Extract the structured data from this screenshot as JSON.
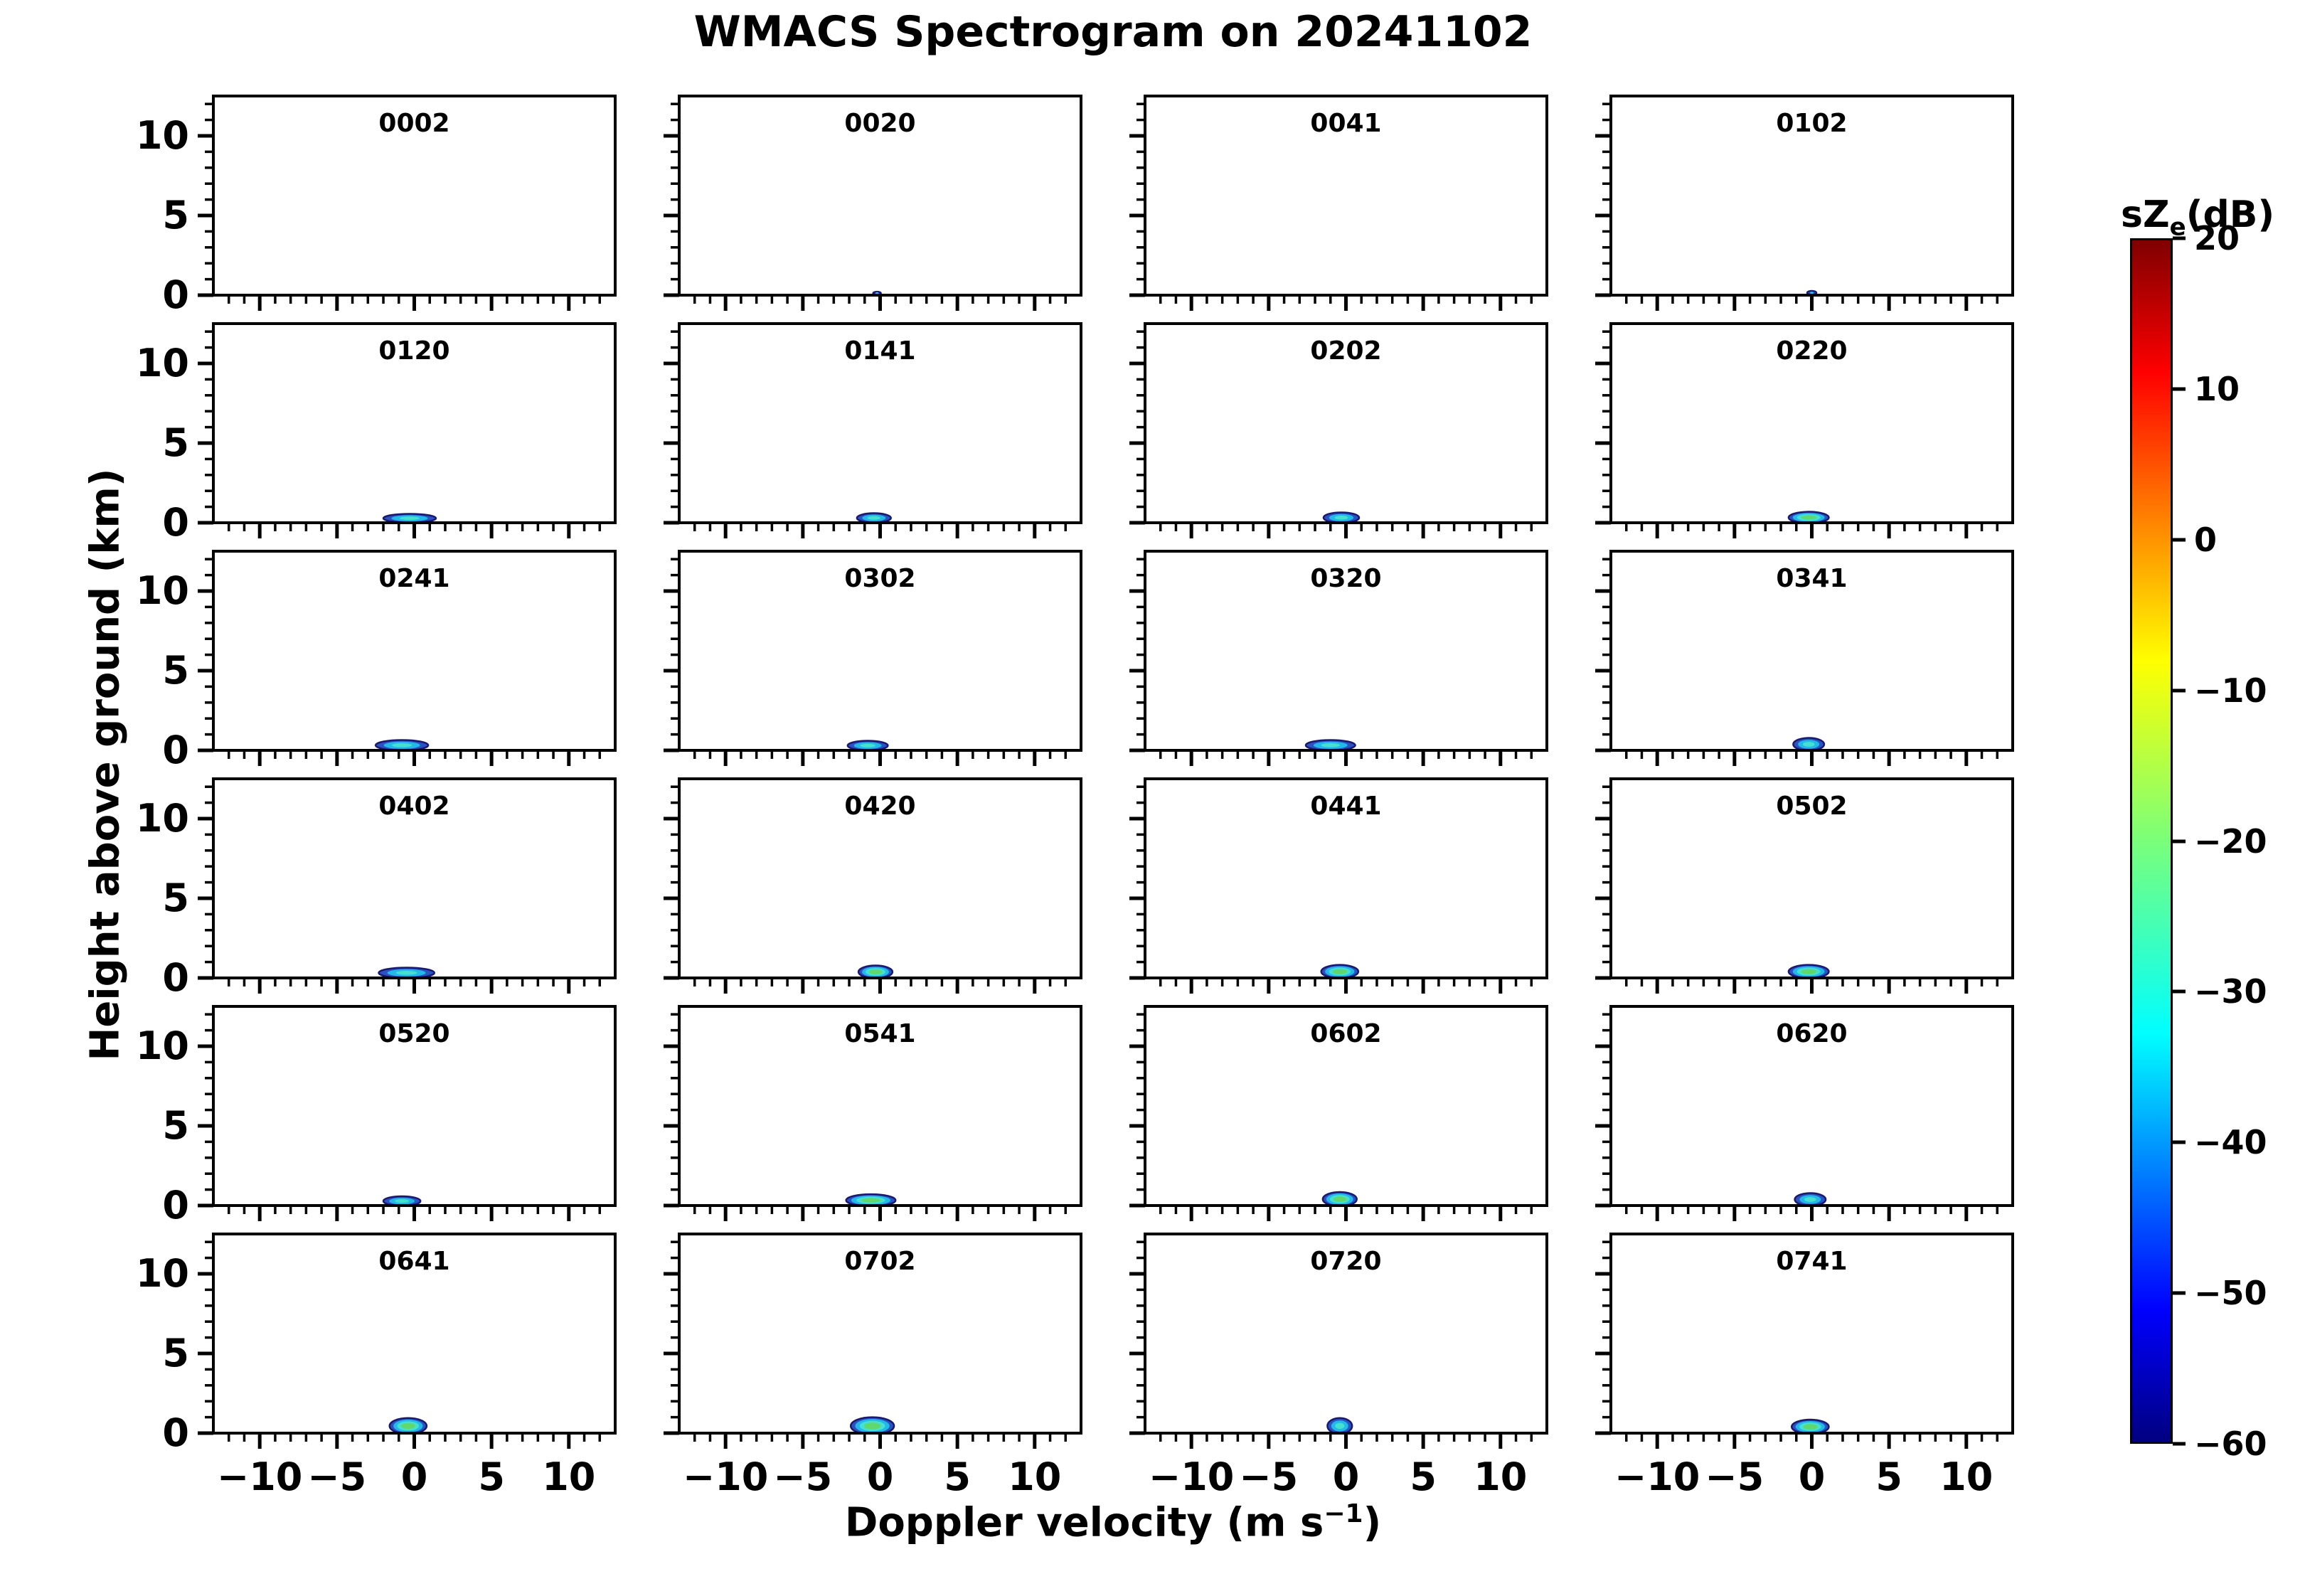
{
  "chart_data": {
    "type": "spectrogram_grid",
    "title": "WMACS Spectrogram on 20241102",
    "ylabel": "Height above ground (km)",
    "xlabel": {
      "prefix": "Doppler velocity (m s",
      "sup": "−1",
      "suffix": ")"
    },
    "grid": {
      "rows": 6,
      "cols": 4
    },
    "axes": {
      "x": {
        "range": [
          -13,
          13
        ],
        "major_ticks": [
          -10,
          -5,
          0,
          5,
          10
        ],
        "major_labels": [
          "−10",
          "−5",
          "0",
          "5",
          "10"
        ],
        "minor_step": 1
      },
      "y": {
        "range": [
          0,
          12.5
        ],
        "major_ticks": [
          0,
          5,
          10
        ],
        "major_labels": [
          "0",
          "5",
          "10"
        ],
        "minor_step": 1
      }
    },
    "colorbar": {
      "title": {
        "prefix": "sZ",
        "sub": "e",
        "suffix": "(dB)"
      },
      "range": [
        -60,
        20
      ],
      "colormap": "jet",
      "ticks": [
        {
          "value": 20,
          "label": "20"
        },
        {
          "value": 10,
          "label": "10"
        },
        {
          "value": 0,
          "label": "0"
        },
        {
          "value": -10,
          "label": "−10"
        },
        {
          "value": -20,
          "label": "−20"
        },
        {
          "value": -30,
          "label": "−30"
        },
        {
          "value": -40,
          "label": "−40"
        },
        {
          "value": -50,
          "label": "−50"
        },
        {
          "value": -60,
          "label": "−60"
        }
      ],
      "gradient": [
        {
          "pos": 0,
          "color": "#800000"
        },
        {
          "pos": 11,
          "color": "#ff0000"
        },
        {
          "pos": 35,
          "color": "#ffff00"
        },
        {
          "pos": 50,
          "color": "#7aff7a"
        },
        {
          "pos": 66,
          "color": "#00ffff"
        },
        {
          "pos": 89,
          "color": "#0000ff"
        },
        {
          "pos": 100,
          "color": "#000080"
        }
      ]
    },
    "panels": [
      {
        "time": "0002",
        "echo": null
      },
      {
        "time": "0020",
        "echo": {
          "v": -0.2,
          "h": 0.12,
          "rv": 0.25,
          "rh": 0.1,
          "colors": [
            "#2a52c0",
            "#27c3e0"
          ]
        }
      },
      {
        "time": "0041",
        "echo": null
      },
      {
        "time": "0102",
        "echo": {
          "v": 0.0,
          "h": 0.15,
          "rv": 0.3,
          "rh": 0.12,
          "colors": [
            "#2a52c0",
            "#27c3e0"
          ]
        }
      },
      {
        "time": "0120",
        "echo": {
          "v": -0.3,
          "h": 0.28,
          "rv": 1.7,
          "rh": 0.28,
          "colors": [
            "#2a52c0",
            "#22b8e8",
            "#45e0cf"
          ]
        }
      },
      {
        "time": "0141",
        "echo": {
          "v": -0.4,
          "h": 0.3,
          "rv": 1.1,
          "rh": 0.3,
          "colors": [
            "#2a52c0",
            "#22b8e8",
            "#45e0cf"
          ]
        }
      },
      {
        "time": "0202",
        "echo": {
          "v": -0.3,
          "h": 0.32,
          "rv": 1.15,
          "rh": 0.33,
          "colors": [
            "#2a52c0",
            "#22b8e8",
            "#45e0cf"
          ]
        }
      },
      {
        "time": "0220",
        "echo": {
          "v": -0.2,
          "h": 0.33,
          "rv": 1.3,
          "rh": 0.36,
          "colors": [
            "#2a52c0",
            "#22b8e8",
            "#45e0cf",
            "#5fd86e"
          ]
        }
      },
      {
        "time": "0241",
        "echo": {
          "v": -0.8,
          "h": 0.32,
          "rv": 1.7,
          "rh": 0.33,
          "colors": [
            "#2a52c0",
            "#22b8e8",
            "#45e0cf"
          ]
        }
      },
      {
        "time": "0302",
        "echo": {
          "v": -0.8,
          "h": 0.3,
          "rv": 1.3,
          "rh": 0.3,
          "colors": [
            "#2a52c0",
            "#22b8e8",
            "#45e0cf"
          ]
        }
      },
      {
        "time": "0320",
        "echo": {
          "v": -1.0,
          "h": 0.32,
          "rv": 1.6,
          "rh": 0.33,
          "colors": [
            "#2a52c0",
            "#22b8e8",
            "#45e0cf"
          ]
        }
      },
      {
        "time": "0341",
        "echo": {
          "v": -0.2,
          "h": 0.38,
          "rv": 1.0,
          "rh": 0.4,
          "colors": [
            "#2a52c0",
            "#22b8e8",
            "#45e0cf"
          ]
        }
      },
      {
        "time": "0402",
        "echo": {
          "v": -0.5,
          "h": 0.32,
          "rv": 1.8,
          "rh": 0.33,
          "colors": [
            "#2a52c0",
            "#22b8e8",
            "#45e0cf"
          ]
        }
      },
      {
        "time": "0420",
        "echo": {
          "v": -0.3,
          "h": 0.38,
          "rv": 1.1,
          "rh": 0.4,
          "colors": [
            "#2a52c0",
            "#22b8e8",
            "#45e0cf",
            "#5fd86e"
          ]
        }
      },
      {
        "time": "0441",
        "echo": {
          "v": -0.4,
          "h": 0.4,
          "rv": 1.2,
          "rh": 0.42,
          "colors": [
            "#2a52c0",
            "#22b8e8",
            "#45e0cf",
            "#5fd86e"
          ]
        }
      },
      {
        "time": "0502",
        "echo": {
          "v": -0.2,
          "h": 0.4,
          "rv": 1.3,
          "rh": 0.42,
          "colors": [
            "#2a52c0",
            "#22b8e8",
            "#45e0cf",
            "#5fd86e"
          ]
        }
      },
      {
        "time": "0520",
        "echo": {
          "v": -0.8,
          "h": 0.28,
          "rv": 1.2,
          "rh": 0.3,
          "colors": [
            "#2a52c0",
            "#22b8e8",
            "#45e0cf"
          ]
        }
      },
      {
        "time": "0541",
        "echo": {
          "v": -0.6,
          "h": 0.33,
          "rv": 1.6,
          "rh": 0.38,
          "colors": [
            "#2a52c0",
            "#22b8e8",
            "#45e0cf",
            "#5fd86e"
          ]
        }
      },
      {
        "time": "0602",
        "echo": {
          "v": -0.4,
          "h": 0.4,
          "rv": 1.1,
          "rh": 0.45,
          "colors": [
            "#2a52c0",
            "#22b8e8",
            "#45e0cf",
            "#5fd86e"
          ]
        }
      },
      {
        "time": "0620",
        "echo": {
          "v": -0.1,
          "h": 0.38,
          "rv": 1.0,
          "rh": 0.4,
          "colors": [
            "#2a52c0",
            "#22b8e8",
            "#45e0cf"
          ]
        }
      },
      {
        "time": "0641",
        "echo": {
          "v": -0.4,
          "h": 0.45,
          "rv": 1.2,
          "rh": 0.5,
          "colors": [
            "#2a52c0",
            "#22b8e8",
            "#45e0cf",
            "#5fd86e"
          ]
        }
      },
      {
        "time": "0702",
        "echo": {
          "v": -0.5,
          "h": 0.45,
          "rv": 1.4,
          "rh": 0.55,
          "colors": [
            "#2a52c0",
            "#22b8e8",
            "#45e0cf",
            "#5fd86e"
          ]
        }
      },
      {
        "time": "0720",
        "echo": {
          "v": -0.4,
          "h": 0.45,
          "rv": 0.8,
          "rh": 0.5,
          "colors": [
            "#2a52c0",
            "#22b8e8",
            "#45e0cf"
          ]
        }
      },
      {
        "time": "0741",
        "echo": {
          "v": -0.1,
          "h": 0.4,
          "rv": 1.2,
          "rh": 0.45,
          "colors": [
            "#2a52c0",
            "#22b8e8",
            "#45e0cf",
            "#5fd86e"
          ]
        }
      }
    ]
  }
}
